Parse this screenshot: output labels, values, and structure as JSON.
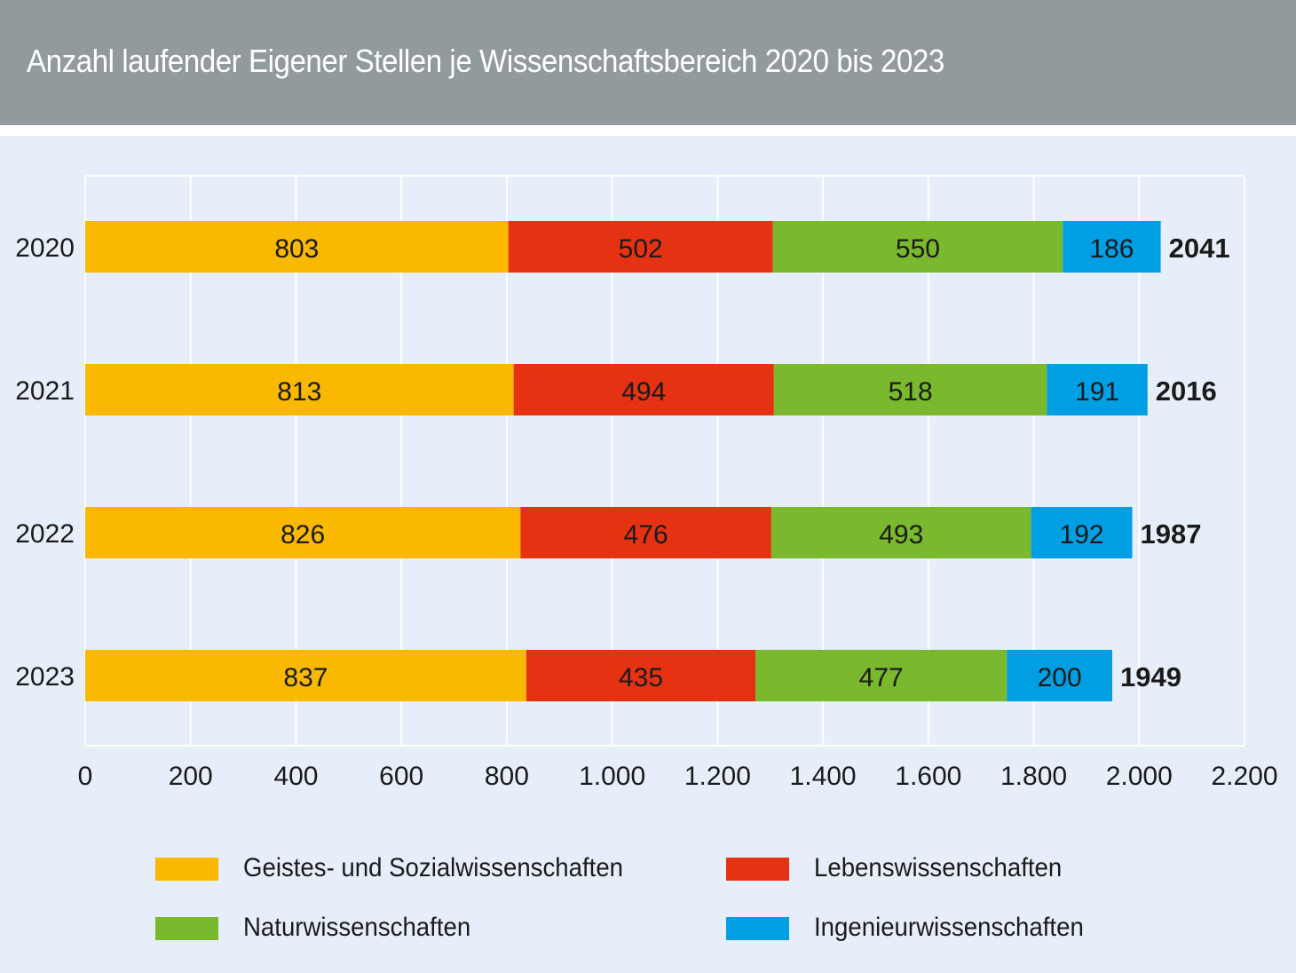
{
  "header": {
    "title": "Anzahl laufender Eigener Stellen je Wissenschaftsbereich 2020 bis 2023"
  },
  "chart_data": {
    "type": "bar",
    "orientation": "horizontal",
    "stacked": true,
    "title": "Anzahl laufender Eigener Stellen je Wissenschaftsbereich 2020 bis 2023",
    "categories": [
      "2020",
      "2021",
      "2022",
      "2023"
    ],
    "series": [
      {
        "name": "Geistes- und Sozialwissenschaften",
        "color": "#fab900",
        "values": [
          803,
          813,
          826,
          837
        ]
      },
      {
        "name": "Lebenswissenschaften",
        "color": "#e53213",
        "values": [
          502,
          494,
          476,
          435
        ]
      },
      {
        "name": "Naturwissenschaften",
        "color": "#7ab82d",
        "values": [
          550,
          518,
          493,
          477
        ]
      },
      {
        "name": "Ingenieurwissenschaften",
        "color": "#009fe3",
        "values": [
          186,
          191,
          192,
          200
        ]
      }
    ],
    "totals": [
      "2041",
      "2016",
      "1987",
      "1949"
    ],
    "xlim": [
      0,
      2200
    ],
    "x_ticks": [
      0,
      200,
      400,
      600,
      800,
      1000,
      1200,
      1400,
      1600,
      1800,
      2000,
      2200
    ],
    "x_tick_labels": [
      "0",
      "200",
      "400",
      "600",
      "800",
      "1.000",
      "1.200",
      "1.400",
      "1.600",
      "1.800",
      "2.000",
      "2.200"
    ],
    "grid": true,
    "legend_position": "bottom"
  }
}
